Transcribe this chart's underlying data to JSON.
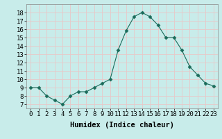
{
  "x": [
    0,
    1,
    2,
    3,
    4,
    5,
    6,
    7,
    8,
    9,
    10,
    11,
    12,
    13,
    14,
    15,
    16,
    17,
    18,
    19,
    20,
    21,
    22,
    23
  ],
  "y": [
    9.0,
    9.0,
    8.0,
    7.5,
    7.0,
    8.0,
    8.5,
    8.5,
    9.0,
    9.5,
    10.0,
    13.5,
    15.8,
    17.5,
    18.0,
    17.5,
    16.5,
    15.0,
    15.0,
    13.5,
    11.5,
    10.5,
    9.5,
    9.2
  ],
  "line_color": "#1a6b5a",
  "marker": "D",
  "marker_size": 2.5,
  "bg_color": "#c8ecea",
  "grid_color": "#e8c8c8",
  "xlabel": "Humidex (Indice chaleur)",
  "xlabel_fontsize": 7.5,
  "tick_fontsize": 6.5,
  "ylim": [
    6.5,
    19.0
  ],
  "xlim": [
    -0.5,
    23.5
  ],
  "yticks": [
    7,
    8,
    9,
    10,
    11,
    12,
    13,
    14,
    15,
    16,
    17,
    18
  ],
  "xticks": [
    0,
    1,
    2,
    3,
    4,
    5,
    6,
    7,
    8,
    9,
    10,
    11,
    12,
    13,
    14,
    15,
    16,
    17,
    18,
    19,
    20,
    21,
    22,
    23
  ]
}
